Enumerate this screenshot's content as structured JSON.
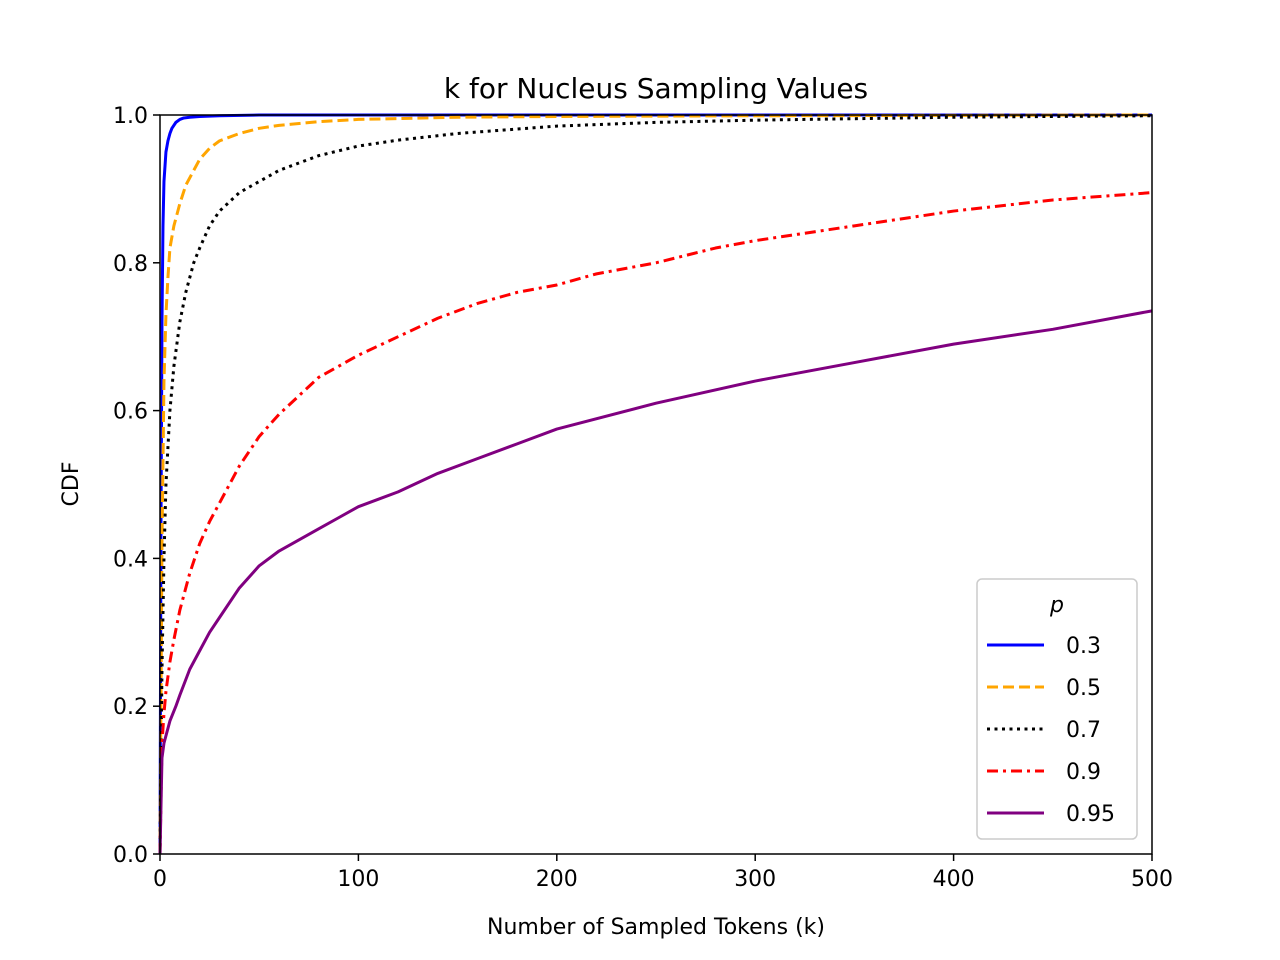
{
  "chart_data": {
    "type": "line",
    "title": "k for Nucleus Sampling Values",
    "xlabel": "Number of Sampled Tokens (k)",
    "ylabel": "CDF",
    "xlim": [
      0,
      500
    ],
    "ylim": [
      0,
      1
    ],
    "xticks": [
      0,
      100,
      200,
      300,
      400,
      500
    ],
    "xtick_labels": [
      "0",
      "100",
      "200",
      "300",
      "400",
      "500"
    ],
    "yticks": [
      0,
      0.2,
      0.4,
      0.6,
      0.8,
      1.0
    ],
    "ytick_labels": [
      "0.0",
      "0.2",
      "0.4",
      "0.6",
      "0.8",
      "1.0"
    ],
    "grid": false,
    "legend": {
      "title": "p",
      "position": "lower-right"
    },
    "series": [
      {
        "name": "0.3",
        "color": "#0000ff",
        "dash": "solid",
        "x": [
          0,
          0.5,
          1,
          1.5,
          2,
          3,
          4,
          5,
          6,
          8,
          10,
          12,
          15,
          20,
          30,
          50,
          100,
          500
        ],
        "y": [
          0,
          0.45,
          0.72,
          0.85,
          0.91,
          0.95,
          0.965,
          0.975,
          0.982,
          0.99,
          0.994,
          0.996,
          0.997,
          0.998,
          0.999,
          1.0,
          1.0,
          1.0
        ]
      },
      {
        "name": "0.5",
        "color": "#ffa500",
        "dash": "dashed",
        "x": [
          0,
          1,
          2,
          3,
          4,
          5,
          7,
          10,
          13,
          17,
          20,
          25,
          30,
          40,
          50,
          60,
          80,
          100,
          150,
          200,
          300,
          500
        ],
        "y": [
          0,
          0.42,
          0.64,
          0.73,
          0.78,
          0.82,
          0.85,
          0.88,
          0.905,
          0.925,
          0.94,
          0.955,
          0.965,
          0.975,
          0.982,
          0.986,
          0.991,
          0.994,
          0.997,
          0.998,
          0.999,
          1.0
        ]
      },
      {
        "name": "0.7",
        "color": "#000000",
        "dash": "dotted",
        "x": [
          0,
          1,
          2,
          3,
          5,
          7,
          10,
          13,
          17,
          20,
          25,
          30,
          40,
          50,
          60,
          70,
          80,
          100,
          120,
          150,
          200,
          250,
          300,
          400,
          500
        ],
        "y": [
          0,
          0.25,
          0.4,
          0.5,
          0.6,
          0.66,
          0.72,
          0.76,
          0.8,
          0.82,
          0.85,
          0.87,
          0.895,
          0.91,
          0.925,
          0.935,
          0.945,
          0.958,
          0.966,
          0.975,
          0.985,
          0.99,
          0.993,
          0.997,
          0.999
        ]
      },
      {
        "name": "0.9",
        "color": "#ff0000",
        "dash": "dashdot",
        "x": [
          0,
          1,
          2,
          3,
          5,
          7,
          10,
          15,
          20,
          25,
          30,
          40,
          50,
          60,
          70,
          80,
          90,
          100,
          120,
          140,
          160,
          180,
          200,
          220,
          250,
          280,
          300,
          350,
          400,
          450,
          500
        ],
        "y": [
          0,
          0.15,
          0.19,
          0.22,
          0.26,
          0.29,
          0.33,
          0.38,
          0.42,
          0.45,
          0.475,
          0.525,
          0.565,
          0.595,
          0.62,
          0.645,
          0.66,
          0.675,
          0.7,
          0.725,
          0.745,
          0.76,
          0.77,
          0.785,
          0.8,
          0.82,
          0.83,
          0.85,
          0.87,
          0.885,
          0.895
        ]
      },
      {
        "name": "0.95",
        "color": "#800080",
        "dash": "solid",
        "x": [
          0,
          1,
          2,
          3,
          5,
          8,
          10,
          15,
          20,
          25,
          30,
          40,
          50,
          60,
          70,
          80,
          90,
          100,
          120,
          140,
          160,
          180,
          200,
          250,
          300,
          350,
          400,
          450,
          500
        ],
        "y": [
          0,
          0.13,
          0.15,
          0.16,
          0.18,
          0.2,
          0.215,
          0.25,
          0.275,
          0.3,
          0.32,
          0.36,
          0.39,
          0.41,
          0.425,
          0.44,
          0.455,
          0.47,
          0.49,
          0.515,
          0.535,
          0.555,
          0.575,
          0.61,
          0.64,
          0.665,
          0.69,
          0.71,
          0.735
        ]
      }
    ]
  }
}
